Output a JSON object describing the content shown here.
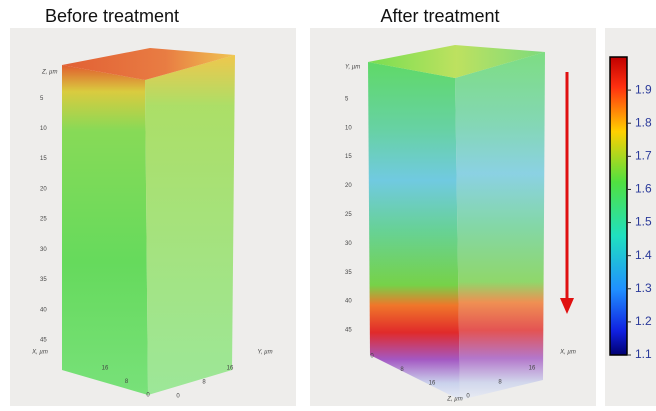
{
  "panels": [
    {
      "title": "Before treatment",
      "axes": {
        "vertical": {
          "label": "Z, µm",
          "ticks": [
            5,
            10,
            15,
            20,
            25,
            30,
            35,
            40,
            45
          ]
        },
        "left": {
          "label": "X, µm",
          "ticks": [
            16,
            8,
            0
          ]
        },
        "right": {
          "label": "Y, µm",
          "ticks": [
            0,
            8,
            16
          ]
        }
      }
    },
    {
      "title": "After treatment",
      "axes": {
        "vertical": {
          "label": "Y, µm",
          "ticks": [
            5,
            10,
            15,
            20,
            25,
            30,
            35,
            40,
            45
          ]
        },
        "left": {
          "label": "Z, µm",
          "ticks": [
            0,
            8,
            16
          ]
        },
        "right": {
          "label": "X, µm",
          "ticks": [
            0,
            8,
            16
          ]
        }
      }
    }
  ],
  "colorbar": {
    "lim": [
      1.1,
      2.0
    ],
    "ticks": [
      1.1,
      1.2,
      1.3,
      1.4,
      1.5,
      1.6,
      1.7,
      1.8,
      1.9
    ]
  }
}
